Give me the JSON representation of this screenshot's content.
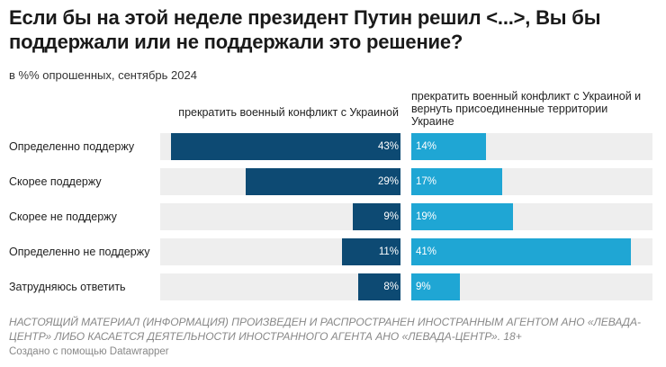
{
  "chart_data": {
    "type": "bar",
    "title": "Если бы на этой неделе президент Путин решил <...>, Вы бы поддержали или не поддержали это решение?",
    "subtitle": "в %% опрошенных, сентябрь 2024",
    "categories": [
      "Определенно поддержу",
      "Скорее поддержу",
      "Скорее не поддержу",
      "Определенно не поддержу",
      "Затрудняюсь ответить"
    ],
    "series": [
      {
        "name": "прекратить военный конфликт с Украиной",
        "values": [
          43,
          29,
          9,
          11,
          8
        ],
        "color": "#0d4a73"
      },
      {
        "name": "прекратить военный конфликт с Украиной и вернуть присоединенные территории Украине",
        "values": [
          14,
          17,
          19,
          41,
          9
        ],
        "color": "#1fa6d4"
      }
    ],
    "xlim": [
      0,
      45
    ],
    "grid": false,
    "legend": "column-headers"
  },
  "footer": {
    "disclaimer": "НАСТОЯЩИЙ МАТЕРИАЛ (ИНФОРМАЦИЯ) ПРОИЗВЕДЕН И РАСПРОСТРАНЕН ИНОСТРАННЫМ АГЕНТОМ АНО «ЛЕВАДА-ЦЕНТР» ЛИБО КАСАЕТСЯ ДЕЯТЕЛЬНОСТИ ИНОСТРАННОГО АГЕНТА АНО «ЛЕВАДА-ЦЕНТР». 18+",
    "credit": "Создано с помощью Datawrapper"
  }
}
